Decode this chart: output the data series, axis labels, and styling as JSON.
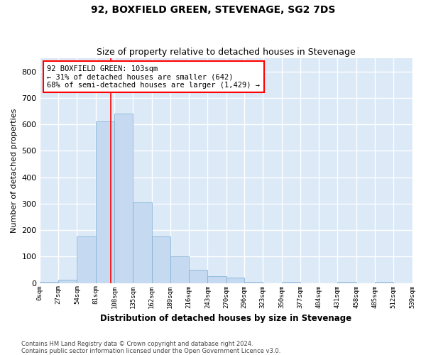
{
  "title": "92, BOXFIELD GREEN, STEVENAGE, SG2 7DS",
  "subtitle": "Size of property relative to detached houses in Stevenage",
  "xlabel": "Distribution of detached houses by size in Stevenage",
  "ylabel": "Number of detached properties",
  "annotation_line1": "92 BOXFIELD GREEN: 103sqm",
  "annotation_line2": "← 31% of detached houses are smaller (642)",
  "annotation_line3": "68% of semi-detached houses are larger (1,429) →",
  "footer_line1": "Contains HM Land Registry data © Crown copyright and database right 2024.",
  "footer_line2": "Contains public sector information licensed under the Open Government Licence v3.0.",
  "bar_color": "#c5d9f0",
  "bar_edge_color": "#7aadd4",
  "background_color": "#dce9f7",
  "fig_background": "#ffffff",
  "red_line_x": 103,
  "bins": [
    0,
    27,
    54,
    81,
    108,
    135,
    162,
    189,
    216,
    243,
    270,
    296,
    323,
    350,
    377,
    404,
    431,
    458,
    485,
    512,
    539
  ],
  "bin_labels": [
    "0sqm",
    "27sqm",
    "54sqm",
    "81sqm",
    "108sqm",
    "135sqm",
    "162sqm",
    "189sqm",
    "216sqm",
    "243sqm",
    "270sqm",
    "296sqm",
    "323sqm",
    "350sqm",
    "377sqm",
    "404sqm",
    "431sqm",
    "458sqm",
    "485sqm",
    "512sqm",
    "539sqm"
  ],
  "counts": [
    5,
    12,
    175,
    610,
    640,
    305,
    175,
    100,
    50,
    25,
    20,
    5,
    0,
    5,
    0,
    0,
    4,
    0,
    4,
    0
  ],
  "ylim": [
    0,
    850
  ],
  "yticks": [
    0,
    100,
    200,
    300,
    400,
    500,
    600,
    700,
    800
  ]
}
